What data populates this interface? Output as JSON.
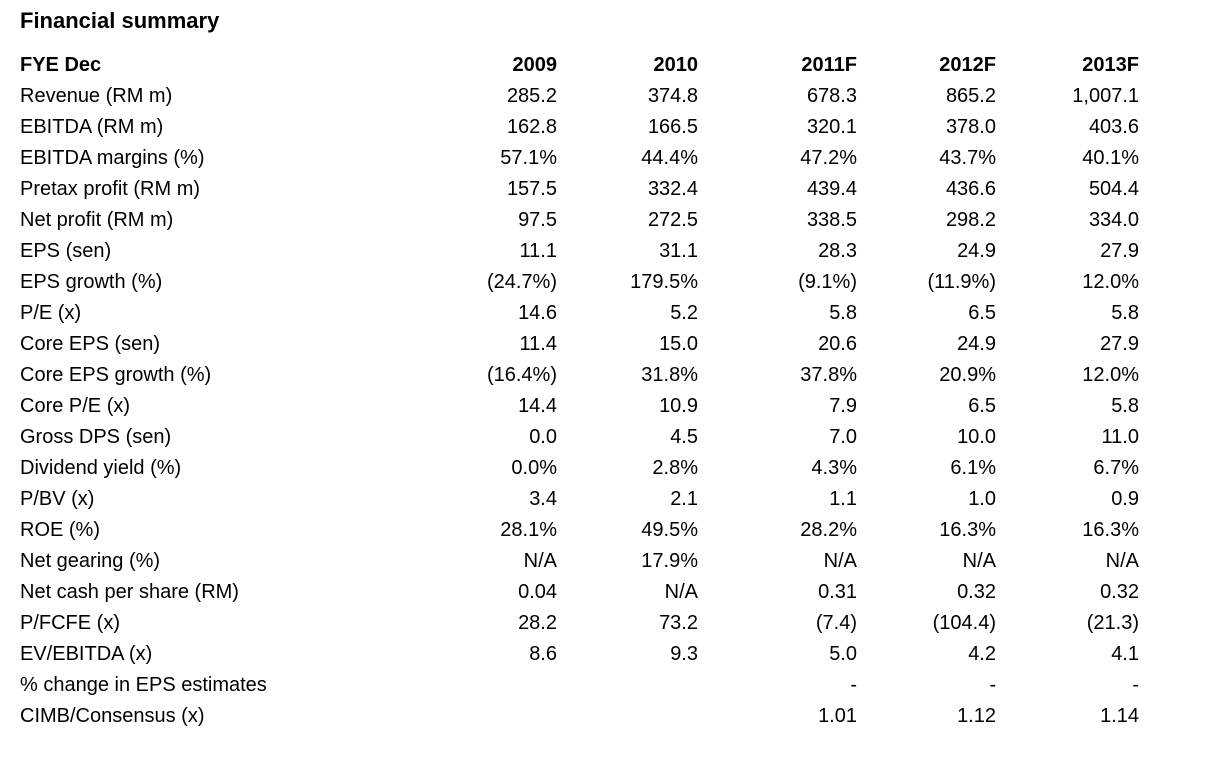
{
  "page": {
    "title": "Financial summary"
  },
  "table": {
    "header": [
      "FYE Dec",
      "2009",
      "2010",
      "2011F",
      "2012F",
      "2013F"
    ],
    "rows": [
      {
        "label": "Revenue (RM m)",
        "values": [
          "285.2",
          "374.8",
          "678.3",
          "865.2",
          "1,007.1"
        ]
      },
      {
        "label": "EBITDA (RM m)",
        "values": [
          "162.8",
          "166.5",
          "320.1",
          "378.0",
          "403.6"
        ]
      },
      {
        "label": "EBITDA margins (%)",
        "values": [
          "57.1%",
          "44.4%",
          "47.2%",
          "43.7%",
          "40.1%"
        ]
      },
      {
        "label": "Pretax profit (RM m)",
        "values": [
          "157.5",
          "332.4",
          "439.4",
          "436.6",
          "504.4"
        ]
      },
      {
        "label": "Net profit (RM m)",
        "values": [
          "97.5",
          "272.5",
          "338.5",
          "298.2",
          "334.0"
        ]
      },
      {
        "label": "EPS (sen)",
        "values": [
          "11.1",
          "31.1",
          "28.3",
          "24.9",
          "27.9"
        ]
      },
      {
        "label": "EPS growth (%)",
        "values": [
          "(24.7%)",
          "179.5%",
          "(9.1%)",
          "(11.9%)",
          "12.0%"
        ]
      },
      {
        "label": "P/E (x)",
        "values": [
          "14.6",
          "5.2",
          "5.8",
          "6.5",
          "5.8"
        ]
      },
      {
        "label": "Core EPS (sen)",
        "values": [
          "11.4",
          "15.0",
          "20.6",
          "24.9",
          "27.9"
        ]
      },
      {
        "label": "Core EPS growth (%)",
        "values": [
          "(16.4%)",
          "31.8%",
          "37.8%",
          "20.9%",
          "12.0%"
        ]
      },
      {
        "label": "Core P/E (x)",
        "values": [
          "14.4",
          "10.9",
          "7.9",
          "6.5",
          "5.8"
        ]
      },
      {
        "label": "Gross DPS (sen)",
        "values": [
          "0.0",
          "4.5",
          "7.0",
          "10.0",
          "11.0"
        ]
      },
      {
        "label": "Dividend yield (%)",
        "values": [
          "0.0%",
          "2.8%",
          "4.3%",
          "6.1%",
          "6.7%"
        ]
      },
      {
        "label": "P/BV (x)",
        "values": [
          "3.4",
          "2.1",
          "1.1",
          "1.0",
          "0.9"
        ]
      },
      {
        "label": "ROE (%)",
        "values": [
          "28.1%",
          "49.5%",
          "28.2%",
          "16.3%",
          "16.3%"
        ]
      },
      {
        "label": "Net gearing (%)",
        "values": [
          "N/A",
          "17.9%",
          "N/A",
          "N/A",
          "N/A"
        ]
      },
      {
        "label": "Net cash per share (RM)",
        "values": [
          "0.04",
          "N/A",
          "0.31",
          "0.32",
          "0.32"
        ]
      },
      {
        "label": "P/FCFE (x)",
        "values": [
          "28.2",
          "73.2",
          "(7.4)",
          "(104.4)",
          "(21.3)"
        ]
      },
      {
        "label": "EV/EBITDA (x)",
        "values": [
          "8.6",
          "9.3",
          "5.0",
          "4.2",
          "4.1"
        ]
      },
      {
        "label": "% change in EPS estimates",
        "values": [
          "",
          "",
          "-",
          "-",
          "-"
        ]
      },
      {
        "label": "CIMB/Consensus (x)",
        "values": [
          "",
          "",
          "1.01",
          "1.12",
          "1.14"
        ]
      }
    ]
  },
  "colors": {
    "text": "#000000",
    "background": "#ffffff"
  }
}
